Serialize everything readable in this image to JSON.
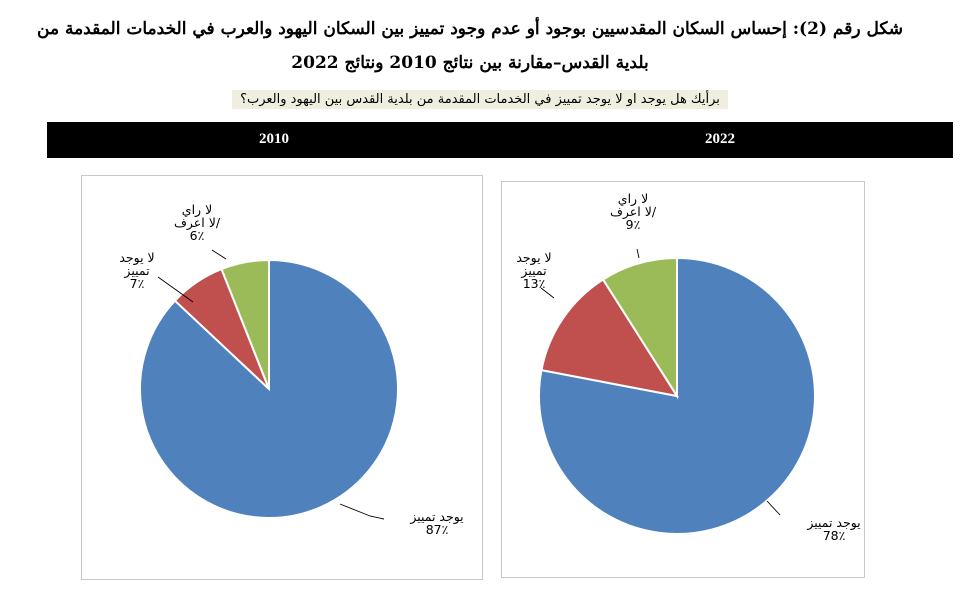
{
  "title": "شكل رقم (2): إحساس السكان المقدسيين بوجود أو عدم وجود تمييز بين السكان اليهود والعرب في الخدمات المقدمة من بلدية القدس–مقارنة بين نتائج 2010 ونتائج 2022",
  "question": "برأيك هل يوجد او لا يوجد تمييز في الخدمات المقدمة من بلدية القدس بين اليهود والعرب؟",
  "colors": {
    "blue": "#4f81bd",
    "red": "#c0504d",
    "green": "#9bbb59",
    "header_bg": "#000000"
  },
  "chart_data": [
    {
      "type": "pie",
      "title": "2010",
      "slices": [
        {
          "label": "يوجد تمييز",
          "value": 87,
          "value_text": "87٪",
          "color": "#4f81bd"
        },
        {
          "label": "لا يوجد تمييز",
          "value": 7,
          "value_text": "7٪",
          "color": "#c0504d"
        },
        {
          "label": "لا راي /لا اعرف",
          "value": 6,
          "value_text": "6٪",
          "color": "#9bbb59"
        }
      ]
    },
    {
      "type": "pie",
      "title": "2022",
      "slices": [
        {
          "label": "يوجد تمييز",
          "value": 78,
          "value_text": "78٪",
          "color": "#4f81bd"
        },
        {
          "label": "لا يوجد تمييز",
          "value": 13,
          "value_text": "13٪",
          "color": "#c0504d"
        },
        {
          "label": "لا راي /لا اعرف",
          "value": 9,
          "value_text": "9٪",
          "color": "#9bbb59"
        }
      ]
    }
  ]
}
